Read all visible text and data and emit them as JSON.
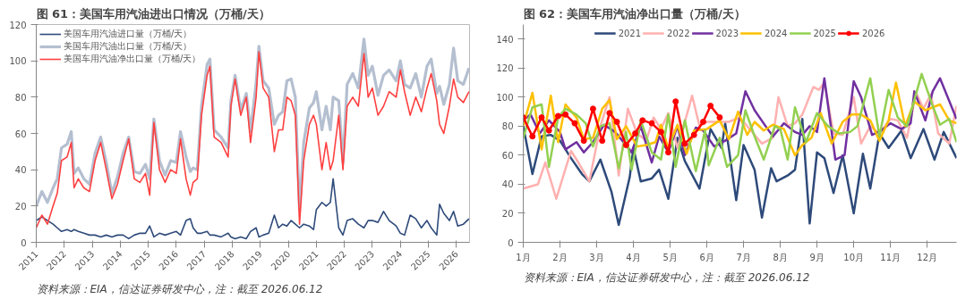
{
  "chart_data": [
    {
      "type": "line",
      "title": "图 61：美国车用汽油进出口情况（万桶/天）",
      "annotations": [
        "资料来源：EIA，信达证券研发中心，注：截至 2026.06.12"
      ],
      "legend": "top left",
      "xlim": [
        2011,
        2026.47
      ],
      "xticks": [
        2011,
        2012,
        2013,
        2014,
        2015,
        2016,
        2017,
        2018,
        2019,
        2020,
        2021,
        2022,
        2023,
        2024,
        2025,
        2026
      ],
      "ylim": [
        0,
        120
      ],
      "yticks": [
        0,
        20,
        40,
        60,
        80,
        100,
        120
      ],
      "x": [
        2011.0,
        2011.2,
        2011.4,
        2011.6,
        2011.75,
        2011.9,
        2012.1,
        2012.25,
        2012.35,
        2012.5,
        2012.7,
        2012.9,
        2013.1,
        2013.3,
        2013.5,
        2013.7,
        2013.9,
        2014.1,
        2014.3,
        2014.5,
        2014.7,
        2014.9,
        2015.05,
        2015.2,
        2015.4,
        2015.6,
        2015.8,
        2016.0,
        2016.15,
        2016.35,
        2016.5,
        2016.6,
        2016.75,
        2016.9,
        2017.1,
        2017.2,
        2017.35,
        2017.6,
        2017.85,
        2017.95,
        2018.1,
        2018.3,
        2018.5,
        2018.65,
        2018.85,
        2018.95,
        2019.1,
        2019.3,
        2019.5,
        2019.65,
        2019.8,
        2019.95,
        2020.1,
        2020.25,
        2020.4,
        2020.55,
        2020.75,
        2020.9,
        2021.0,
        2021.2,
        2021.35,
        2021.5,
        2021.6,
        2021.8,
        2021.95,
        2022.1,
        2022.3,
        2022.5,
        2022.7,
        2022.85,
        2023.0,
        2023.2,
        2023.4,
        2023.6,
        2023.85,
        2024.0,
        2024.15,
        2024.35,
        2024.55,
        2024.75,
        2024.95,
        2025.1,
        2025.3,
        2025.4,
        2025.55,
        2025.75,
        2025.9,
        2026.05,
        2026.25,
        2026.45
      ],
      "series": [
        {
          "name": "美国车用汽油进口量（万桶/天）",
          "color": "#2e4a7a",
          "values": [
            12,
            14,
            12,
            10,
            8,
            6,
            7,
            6,
            7,
            6,
            5,
            4,
            4,
            3,
            4,
            3,
            4,
            4,
            2,
            4,
            5,
            5,
            9,
            3,
            5,
            4,
            5,
            6,
            4,
            12,
            13,
            8,
            5,
            5,
            6,
            4,
            4,
            3,
            5,
            3,
            2,
            3,
            2,
            6,
            8,
            3,
            4,
            5,
            15,
            8,
            10,
            9,
            12,
            10,
            8,
            10,
            9,
            7,
            18,
            22,
            20,
            22,
            35,
            8,
            4,
            12,
            13,
            10,
            8,
            12,
            12,
            11,
            17,
            12,
            9,
            5,
            4,
            15,
            13,
            8,
            12,
            8,
            4,
            21,
            16,
            12,
            17,
            9,
            10,
            13
          ]
        },
        {
          "name": "美国车用汽油出口量（万桶/天）",
          "color": "#b4bfd0",
          "values": [
            20,
            28,
            22,
            30,
            35,
            52,
            54,
            61,
            38,
            41,
            35,
            32,
            49,
            58,
            44,
            27,
            36,
            49,
            58,
            39,
            38,
            43,
            35,
            68,
            45,
            37,
            45,
            44,
            61,
            47,
            39,
            41,
            40,
            75,
            98,
            101,
            62,
            58,
            52,
            78,
            92,
            73,
            82,
            61,
            88,
            108,
            89,
            85,
            65,
            70,
            72,
            89,
            90,
            80,
            18,
            55,
            74,
            77,
            83,
            62,
            75,
            62,
            80,
            78,
            44,
            87,
            93,
            85,
            112,
            92,
            97,
            81,
            92,
            95,
            89,
            100,
            87,
            85,
            93,
            80,
            97,
            101,
            82,
            86,
            76,
            87,
            107,
            89,
            87,
            96
          ]
        },
        {
          "name": "美国车用汽油净出口量（万桶/天）",
          "color": "#ff4040",
          "values": [
            8,
            15,
            10,
            20,
            27,
            45,
            47,
            55,
            30,
            35,
            30,
            28,
            45,
            55,
            40,
            24,
            32,
            45,
            57,
            35,
            33,
            38,
            26,
            66,
            40,
            33,
            40,
            38,
            57,
            35,
            26,
            33,
            35,
            70,
            92,
            97,
            58,
            55,
            47,
            75,
            90,
            70,
            80,
            55,
            80,
            105,
            85,
            80,
            50,
            62,
            62,
            80,
            78,
            70,
            10,
            45,
            65,
            70,
            65,
            40,
            55,
            40,
            45,
            70,
            40,
            75,
            80,
            75,
            104,
            80,
            85,
            70,
            75,
            83,
            80,
            95,
            83,
            70,
            80,
            72,
            85,
            93,
            78,
            65,
            60,
            75,
            90,
            80,
            77,
            83
          ]
        }
      ]
    },
    {
      "type": "line",
      "title": "图 62：美国车用汽油净出口量（万桶/天）",
      "annotations": [
        "资料来源：EIA，信达证券研发中心，注：截至 2026.06.12"
      ],
      "legend": "top",
      "xlim": [
        1,
        12.8
      ],
      "xticks": [
        {
          "value": 1,
          "label": "1月"
        },
        {
          "value": 2,
          "label": "2月"
        },
        {
          "value": 3,
          "label": "3月"
        },
        {
          "value": 4,
          "label": "4月"
        },
        {
          "value": 5,
          "label": "5月"
        },
        {
          "value": 6,
          "label": "6月"
        },
        {
          "value": 7,
          "label": "7月"
        },
        {
          "value": 8,
          "label": "8月"
        },
        {
          "value": 9,
          "label": "9月"
        },
        {
          "value": 10,
          "label": "10月"
        },
        {
          "value": 11,
          "label": "11月"
        },
        {
          "value": 12,
          "label": "12月"
        }
      ],
      "ylim": [
        0,
        150
      ],
      "yticks": [
        0,
        20,
        40,
        60,
        80,
        100,
        120,
        140
      ],
      "series": [
        {
          "name": "2021",
          "color": "#2e4a7a",
          "x": [
            1.0,
            1.25,
            1.5,
            1.75,
            2.0,
            2.3,
            2.6,
            2.8,
            3.1,
            3.4,
            3.6,
            3.9,
            4.0,
            4.2,
            4.5,
            4.7,
            4.95,
            5.2,
            5.4,
            5.8,
            6.1,
            6.4,
            6.5,
            6.8,
            7.0,
            7.3,
            7.5,
            7.75,
            7.9,
            8.2,
            8.4,
            8.6,
            8.8,
            9.0,
            9.2,
            9.45,
            9.7,
            10.0,
            10.25,
            10.45,
            10.7,
            10.95,
            11.3,
            11.55,
            11.9,
            12.2,
            12.45,
            12.8
          ],
          "values": [
            80,
            47,
            73,
            74,
            70,
            58,
            47,
            42,
            57,
            35,
            12,
            45,
            65,
            42,
            44,
            50,
            30,
            72,
            56,
            37,
            78,
            65,
            82,
            29,
            67,
            50,
            17,
            51,
            42,
            46,
            50,
            85,
            13,
            62,
            58,
            34,
            60,
            20,
            61,
            37,
            75,
            65,
            77,
            58,
            78,
            57,
            76,
            58
          ]
        },
        {
          "name": "2022",
          "color": "#ffb0b0",
          "x": [
            1.0,
            1.4,
            1.6,
            1.9,
            2.3,
            2.5,
            2.8,
            3.1,
            3.35,
            3.6,
            3.85,
            4.1,
            4.35,
            4.55,
            4.75,
            4.95,
            5.2,
            5.6,
            5.8,
            6.0,
            6.3,
            6.6,
            6.9,
            7.2,
            7.5,
            7.8,
            7.95,
            8.2,
            8.4,
            8.6,
            8.9,
            9.05,
            9.2,
            9.45,
            9.7,
            10.0,
            10.2,
            10.45,
            10.7,
            11.0,
            11.2,
            11.45,
            11.7,
            11.9,
            12.1,
            12.3,
            12.6,
            12.8
          ],
          "values": [
            37,
            40,
            55,
            30,
            63,
            55,
            42,
            80,
            100,
            46,
            92,
            75,
            70,
            86,
            78,
            89,
            65,
            101,
            80,
            83,
            83,
            83,
            86,
            77,
            68,
            72,
            100,
            80,
            82,
            88,
            107,
            105,
            110,
            75,
            74,
            100,
            68,
            80,
            75,
            85,
            84,
            72,
            103,
            92,
            102,
            75,
            68,
            94
          ]
        },
        {
          "name": "2023",
          "color": "#7030a0",
          "x": [
            1.0,
            1.2,
            1.45,
            1.7,
            2.0,
            2.15,
            2.45,
            2.65,
            2.9,
            3.2,
            3.5,
            3.7,
            3.95,
            4.2,
            4.5,
            4.7,
            4.95,
            5.2,
            5.4,
            5.7,
            5.9,
            6.2,
            6.5,
            6.8,
            7.05,
            7.3,
            7.6,
            7.8,
            8.1,
            8.4,
            8.6,
            8.8,
            9.0,
            9.2,
            9.5,
            9.75,
            10.0,
            10.2,
            10.5,
            10.75,
            11.0,
            11.3,
            11.55,
            11.65,
            11.95,
            12.15,
            12.35,
            12.8
          ],
          "values": [
            84,
            88,
            75,
            84,
            76,
            64,
            69,
            62,
            69,
            81,
            76,
            70,
            62,
            80,
            55,
            73,
            62,
            80,
            60,
            79,
            77,
            66,
            70,
            75,
            104,
            91,
            80,
            73,
            82,
            76,
            74,
            80,
            76,
            113,
            57,
            60,
            111,
            100,
            74,
            77,
            82,
            78,
            82,
            104,
            84,
            104,
            113,
            85
          ]
        },
        {
          "name": "2024",
          "color": "#ffc000",
          "x": [
            1.0,
            1.25,
            1.5,
            1.75,
            1.95,
            2.15,
            2.45,
            2.65,
            2.9,
            3.15,
            3.35,
            3.55,
            3.8,
            4.1,
            4.35,
            4.6,
            4.75,
            4.95,
            5.2,
            5.45,
            5.65,
            6.0,
            6.35,
            6.6,
            6.85,
            7.1,
            7.3,
            7.55,
            7.8,
            8.1,
            8.4,
            8.6,
            8.85,
            9.1,
            9.4,
            9.7,
            9.95,
            10.2,
            10.45,
            10.7,
            10.95,
            11.15,
            11.4,
            11.65,
            11.95,
            12.35,
            12.6,
            12.8
          ],
          "values": [
            80,
            103,
            64,
            101,
            69,
            95,
            86,
            71,
            72,
            92,
            98,
            71,
            80,
            66,
            67,
            69,
            81,
            65,
            81,
            61,
            77,
            78,
            84,
            71,
            90,
            74,
            83,
            77,
            81,
            78,
            60,
            67,
            72,
            89,
            68,
            83,
            88,
            88,
            84,
            70,
            84,
            110,
            80,
            97,
            91,
            95,
            84,
            82
          ]
        },
        {
          "name": "2025",
          "color": "#92d050",
          "x": [
            1.0,
            1.25,
            1.5,
            1.7,
            1.95,
            2.15,
            2.45,
            2.7,
            2.9,
            3.1,
            3.35,
            3.6,
            3.8,
            3.95,
            4.2,
            4.5,
            4.75,
            4.95,
            5.15,
            5.4,
            5.7,
            5.95,
            6.05,
            6.35,
            6.55,
            6.85,
            7.05,
            7.3,
            7.55,
            7.85,
            8.0,
            8.2,
            8.4,
            8.7,
            9.0,
            9.3,
            9.6,
            9.9,
            10.1,
            10.45,
            10.7,
            10.95,
            11.2,
            11.45,
            11.85,
            12.15,
            12.35,
            12.6,
            12.8
          ],
          "values": [
            72,
            93,
            95,
            52,
            86,
            92,
            88,
            82,
            66,
            80,
            82,
            51,
            76,
            50,
            84,
            62,
            57,
            88,
            52,
            84,
            49,
            77,
            53,
            72,
            52,
            60,
            91,
            73,
            57,
            80,
            78,
            57,
            93,
            69,
            89,
            80,
            75,
            76,
            80,
            113,
            73,
            105,
            86,
            80,
            116,
            94,
            81,
            85,
            69
          ]
        },
        {
          "name": "2026",
          "color": "#ff0000",
          "marker": "circle",
          "x": [
            1.0,
            1.25,
            1.5,
            1.7,
            1.95,
            2.15,
            2.4,
            2.65,
            2.9,
            3.15,
            3.35,
            3.55,
            3.8,
            4.05,
            4.25,
            4.5,
            4.75,
            4.95,
            5.15,
            5.4,
            5.65,
            5.9,
            6.1,
            6.35
          ],
          "values": [
            86,
            73,
            86,
            77,
            87,
            88,
            82,
            70,
            92,
            70,
            89,
            83,
            67,
            75,
            84,
            82,
            76,
            62,
            97,
            68,
            74,
            83,
            94,
            86
          ]
        }
      ]
    }
  ]
}
